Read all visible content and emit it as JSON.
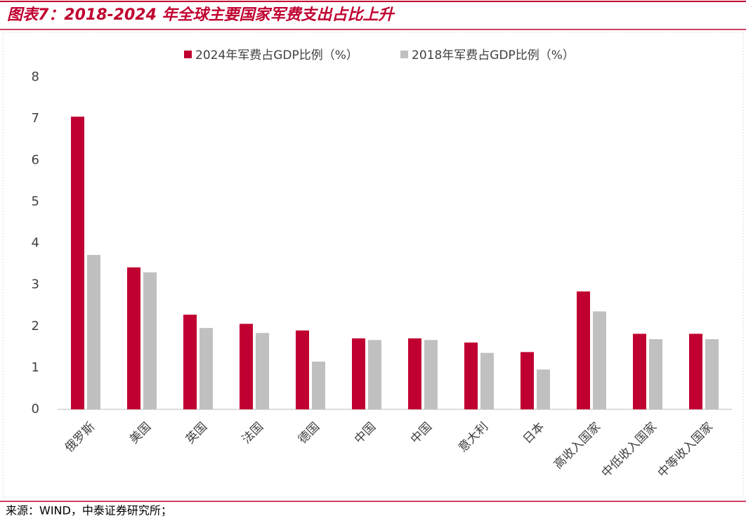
{
  "chart_data": {
    "type": "bar",
    "title": "图表7：2018-2024 年全球主要国家军费支出占比上升",
    "source": "来源：WIND，中泰证券研究所；",
    "categories": [
      "俄罗斯",
      "美国",
      "英国",
      "法国",
      "德国",
      "中国",
      "中国",
      "意大利",
      "日本",
      "高收入国家",
      "中低收入国家",
      "中等收入国家"
    ],
    "series": [
      {
        "name": "2024年军费占GDP比例（%）",
        "color": "#c00030",
        "values": [
          7.05,
          3.42,
          2.28,
          2.06,
          1.9,
          1.71,
          1.71,
          1.61,
          1.38,
          2.84,
          1.82,
          1.82
        ]
      },
      {
        "name": "2018年军费占GDP比例（%）",
        "color": "#c0c0c0",
        "values": [
          3.72,
          3.3,
          1.96,
          1.84,
          1.15,
          1.67,
          1.67,
          1.36,
          0.96,
          2.36,
          1.69,
          1.69
        ]
      }
    ],
    "ylim": [
      0,
      8
    ],
    "yticks": [
      0,
      1,
      2,
      3,
      4,
      5,
      6,
      7,
      8
    ],
    "grid": false,
    "legend": "top"
  }
}
